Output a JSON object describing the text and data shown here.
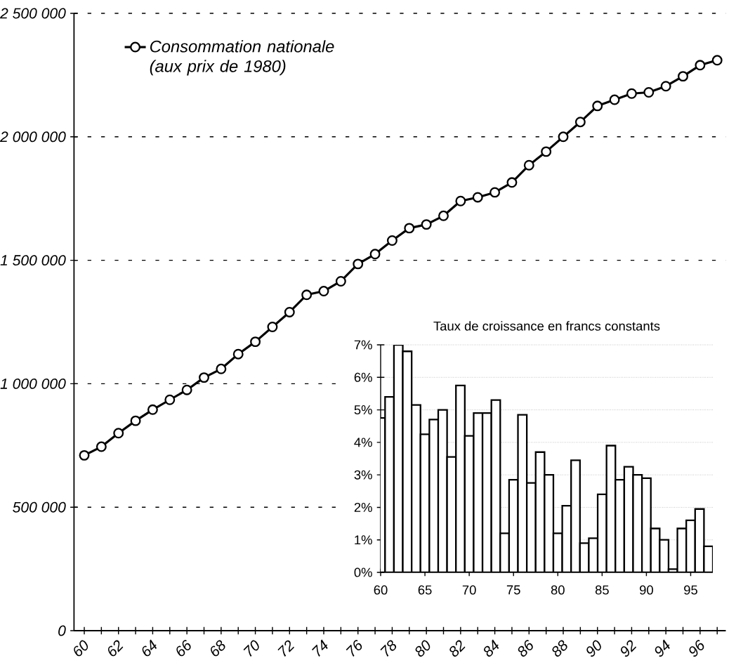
{
  "chart_data": [
    {
      "type": "line",
      "categories": [
        "60",
        null,
        "62",
        null,
        "64",
        null,
        "66",
        null,
        "68",
        null,
        "70",
        null,
        "72",
        null,
        "74",
        null,
        "76",
        null,
        "78",
        null,
        "80",
        null,
        "82",
        null,
        "84",
        null,
        "86",
        null,
        "88",
        null,
        "90",
        null,
        "92",
        null,
        "94",
        null,
        "96",
        null
      ],
      "series": [
        {
          "name": "Consommation nationale (aux prix de 1980)",
          "color": "#000000",
          "values": [
            710000,
            745000,
            800000,
            850000,
            895000,
            935000,
            975000,
            1025000,
            1060000,
            1120000,
            1170000,
            1230000,
            1290000,
            1360000,
            1375000,
            1415000,
            1485000,
            1525000,
            1580000,
            1630000,
            1645000,
            1680000,
            1740000,
            1755000,
            1775000,
            1815000,
            1885000,
            1940000,
            2000000,
            2060000,
            2125000,
            2150000,
            2175000,
            2180000,
            2205000,
            2245000,
            2290000,
            2310000
          ]
        }
      ],
      "ylim": [
        0,
        2500000
      ],
      "yticks": [
        0,
        {
          "value": 500000,
          "label": "500 000"
        },
        {
          "value": 1000000,
          "label": "1 000 000"
        },
        {
          "value": 1500000,
          "label": "1 500 000"
        },
        {
          "value": 2000000,
          "label": "2 000 000"
        },
        {
          "value": 2500000,
          "label": "2 500 000"
        }
      ],
      "grid": "y",
      "legend": "top left",
      "marker": "circle",
      "line_style": "solid"
    },
    {
      "type": "bar",
      "title": "Taux de croissance en francs constants",
      "categories": [
        "60",
        null,
        null,
        null,
        null,
        "65",
        null,
        null,
        null,
        null,
        "70",
        null,
        null,
        null,
        null,
        "75",
        null,
        null,
        null,
        null,
        "80",
        null,
        null,
        null,
        null,
        "85",
        null,
        null,
        null,
        null,
        "90",
        null,
        null,
        null,
        null,
        "95",
        null,
        null
      ],
      "values": [
        4.75,
        5.4,
        7.0,
        6.8,
        5.15,
        4.25,
        4.7,
        5.0,
        3.55,
        5.75,
        4.2,
        4.9,
        4.9,
        5.3,
        1.2,
        2.85,
        4.85,
        2.75,
        3.7,
        3.0,
        1.2,
        2.05,
        3.45,
        0.9,
        1.05,
        2.4,
        3.9,
        2.85,
        3.25,
        3.0,
        2.9,
        1.35,
        1.0,
        0.1,
        1.35,
        1.6,
        1.95,
        0.8
      ],
      "color": "#ffffff",
      "ylim": [
        0,
        7
      ],
      "yticks": [
        {
          "value": 0,
          "label": "0%"
        },
        {
          "value": 1,
          "label": "1%"
        },
        {
          "value": 2,
          "label": "2%"
        },
        {
          "value": 3,
          "label": "3%"
        },
        {
          "value": 4,
          "label": "4%"
        },
        {
          "value": 5,
          "label": "5%"
        },
        {
          "value": 6,
          "label": "6%"
        },
        {
          "value": 7,
          "label": "7%"
        }
      ],
      "grid": "y"
    }
  ]
}
